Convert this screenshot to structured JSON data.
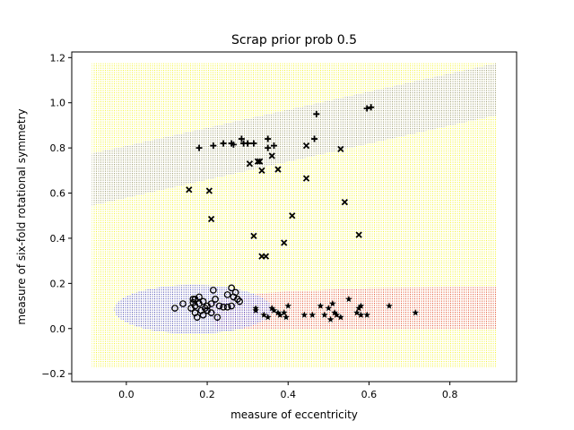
{
  "chart_data": {
    "type": "scatter",
    "title": "Scrap prior prob 0.5",
    "xlabel": "measure of eccentricity",
    "ylabel": "measure of six-fold rotational symmetry",
    "xlim": [
      -0.135,
      0.965
    ],
    "ylim": [
      -0.235,
      1.225
    ],
    "xticks": [
      "0.0",
      "0.2",
      "0.4",
      "0.6",
      "0.8"
    ],
    "xtick_values": [
      0.0,
      0.2,
      0.4,
      0.6,
      0.8
    ],
    "yticks": [
      "−0.2",
      "0.0",
      "0.2",
      "0.4",
      "0.6",
      "0.8",
      "1.0",
      "1.2"
    ],
    "ytick_values": [
      -0.2,
      0.0,
      0.2,
      0.4,
      0.6,
      0.8,
      1.0,
      1.2
    ],
    "grid": false,
    "colors": {
      "region_yellow": "#f2f20a",
      "region_gray": "#8a8a8a",
      "region_blue": "#2a2ad6",
      "region_red": "#e0313a",
      "marker": "#000000"
    },
    "decision_regions": {
      "x_range": [
        -0.085,
        0.915
      ],
      "y_range": [
        -0.175,
        1.175
      ],
      "background_class": "yellow",
      "gray_band_lower_boundary": [
        [
          -0.085,
          0.545
        ],
        [
          0.915,
          0.945
        ]
      ],
      "gray_band_upper_boundary": [
        [
          -0.085,
          0.775
        ],
        [
          0.915,
          1.175
        ]
      ],
      "blue_ellipse": {
        "cx": 0.165,
        "cy": 0.085,
        "rx": 0.195,
        "ry": 0.108
      },
      "red_region_top_boundary": [
        [
          0.2,
          0.12
        ],
        [
          0.35,
          0.16
        ],
        [
          0.6,
          0.18
        ],
        [
          0.915,
          0.185
        ]
      ],
      "red_region_bottom_boundary": [
        [
          0.22,
          0.0
        ],
        [
          0.6,
          -0.005
        ],
        [
          0.915,
          -0.005
        ]
      ]
    },
    "series": [
      {
        "marker": "circle",
        "points": [
          [
            0.12,
            0.09
          ],
          [
            0.14,
            0.11
          ],
          [
            0.16,
            0.09
          ],
          [
            0.165,
            0.115
          ],
          [
            0.17,
            0.07
          ],
          [
            0.17,
            0.1
          ],
          [
            0.17,
            0.13
          ],
          [
            0.175,
            0.05
          ],
          [
            0.18,
            0.14
          ],
          [
            0.18,
            0.11
          ],
          [
            0.185,
            0.08
          ],
          [
            0.19,
            0.12
          ],
          [
            0.19,
            0.06
          ],
          [
            0.2,
            0.1
          ],
          [
            0.2,
            0.08
          ],
          [
            0.21,
            0.11
          ],
          [
            0.21,
            0.07
          ],
          [
            0.215,
            0.17
          ],
          [
            0.22,
            0.13
          ],
          [
            0.225,
            0.05
          ],
          [
            0.23,
            0.1
          ],
          [
            0.24,
            0.095
          ],
          [
            0.25,
            0.15
          ],
          [
            0.25,
            0.095
          ],
          [
            0.26,
            0.18
          ],
          [
            0.26,
            0.1
          ],
          [
            0.265,
            0.14
          ],
          [
            0.27,
            0.16
          ],
          [
            0.275,
            0.13
          ],
          [
            0.28,
            0.12
          ],
          [
            0.165,
            0.13
          ],
          [
            0.195,
            0.09
          ]
        ]
      },
      {
        "marker": "plus",
        "points": [
          [
            0.18,
            0.8
          ],
          [
            0.215,
            0.81
          ],
          [
            0.24,
            0.82
          ],
          [
            0.26,
            0.82
          ],
          [
            0.265,
            0.815
          ],
          [
            0.285,
            0.84
          ],
          [
            0.29,
            0.82
          ],
          [
            0.3,
            0.82
          ],
          [
            0.315,
            0.82
          ],
          [
            0.35,
            0.84
          ],
          [
            0.35,
            0.8
          ],
          [
            0.365,
            0.81
          ],
          [
            0.465,
            0.84
          ],
          [
            0.47,
            0.95
          ],
          [
            0.595,
            0.975
          ],
          [
            0.605,
            0.98
          ]
        ]
      },
      {
        "marker": "x",
        "points": [
          [
            0.155,
            0.615
          ],
          [
            0.205,
            0.61
          ],
          [
            0.21,
            0.485
          ],
          [
            0.305,
            0.73
          ],
          [
            0.315,
            0.41
          ],
          [
            0.325,
            0.74
          ],
          [
            0.33,
            0.74
          ],
          [
            0.335,
            0.7
          ],
          [
            0.335,
            0.32
          ],
          [
            0.345,
            0.32
          ],
          [
            0.36,
            0.765
          ],
          [
            0.375,
            0.705
          ],
          [
            0.39,
            0.38
          ],
          [
            0.41,
            0.5
          ],
          [
            0.445,
            0.665
          ],
          [
            0.445,
            0.81
          ],
          [
            0.53,
            0.795
          ],
          [
            0.54,
            0.56
          ],
          [
            0.575,
            0.415
          ]
        ]
      },
      {
        "marker": "star",
        "points": [
          [
            0.32,
            0.09
          ],
          [
            0.32,
            0.08
          ],
          [
            0.34,
            0.06
          ],
          [
            0.35,
            0.05
          ],
          [
            0.36,
            0.09
          ],
          [
            0.365,
            0.08
          ],
          [
            0.375,
            0.07
          ],
          [
            0.38,
            0.06
          ],
          [
            0.39,
            0.07
          ],
          [
            0.395,
            0.05
          ],
          [
            0.4,
            0.1
          ],
          [
            0.44,
            0.06
          ],
          [
            0.46,
            0.06
          ],
          [
            0.48,
            0.1
          ],
          [
            0.49,
            0.06
          ],
          [
            0.5,
            0.09
          ],
          [
            0.505,
            0.04
          ],
          [
            0.51,
            0.11
          ],
          [
            0.515,
            0.07
          ],
          [
            0.52,
            0.06
          ],
          [
            0.53,
            0.05
          ],
          [
            0.55,
            0.13
          ],
          [
            0.57,
            0.07
          ],
          [
            0.575,
            0.09
          ],
          [
            0.58,
            0.1
          ],
          [
            0.58,
            0.06
          ],
          [
            0.595,
            0.06
          ],
          [
            0.65,
            0.1
          ],
          [
            0.715,
            0.07
          ]
        ]
      }
    ]
  }
}
